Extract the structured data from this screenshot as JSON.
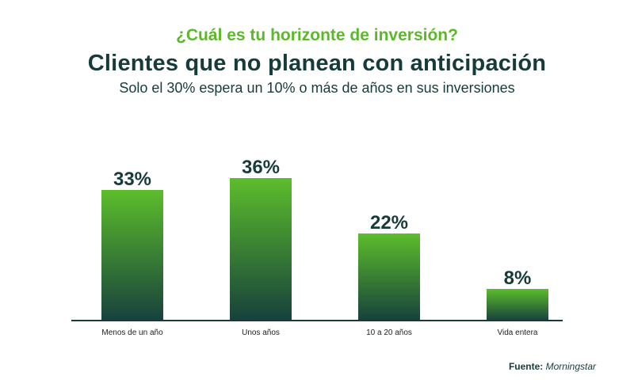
{
  "header": {
    "kicker": "¿Cuál es tu horizonte de inversión?",
    "title": "Clientes que no planean con anticipación",
    "subtitle": "Solo el 30% espera un 10% o más de años en sus inversiones"
  },
  "footer": {
    "source_label": "Fuente:",
    "source_name": "Morningstar"
  },
  "colors": {
    "bar_top": "#5cbd2b",
    "bar_bottom": "#17413c",
    "text_dark": "#163b3a",
    "accent": "#5cb82a"
  },
  "chart_data": {
    "type": "bar",
    "categories": [
      "Menos de un año",
      "Unos años",
      "10 a 20 años",
      "Vida entera"
    ],
    "values": [
      33,
      36,
      22,
      8
    ],
    "value_labels": [
      "33%",
      "36%",
      "22%",
      "8%"
    ],
    "ylim": [
      0,
      36
    ],
    "grid": false,
    "legend": "none"
  }
}
